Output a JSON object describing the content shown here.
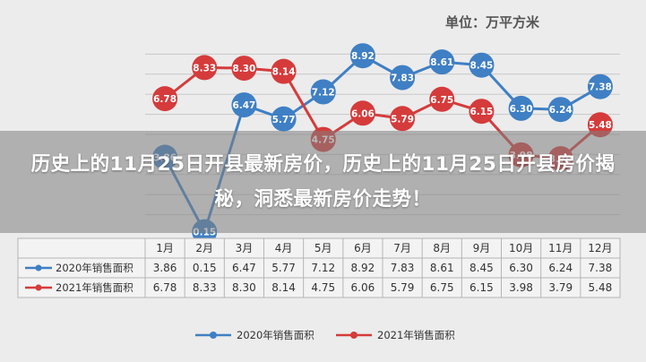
{
  "header": {
    "unit": "单位：万平方米"
  },
  "banner": {
    "title": "历史上的11月25日开县最新房价，历史上的11月25日开县房价揭秘，洞悉最新房价走势！"
  },
  "colors": {
    "series_2020": "#3f7fc4",
    "series_2021": "#d53b3b",
    "grid": "#c8c8c8",
    "bg": "#ececec"
  },
  "chart_data": {
    "type": "line",
    "categories": [
      "1月",
      "2月",
      "3月",
      "4月",
      "5月",
      "6月",
      "7月",
      "8月",
      "9月",
      "10月",
      "11月",
      "12月"
    ],
    "series": [
      {
        "name": "2020年销售面积",
        "values": [
          3.86,
          0.15,
          6.47,
          5.77,
          7.12,
          8.92,
          7.83,
          8.61,
          8.45,
          6.3,
          6.24,
          7.38
        ]
      },
      {
        "name": "2021年销售面积",
        "values": [
          6.78,
          8.33,
          8.3,
          8.14,
          4.75,
          6.06,
          5.79,
          6.75,
          6.15,
          3.98,
          3.79,
          5.48
        ]
      }
    ],
    "data_labels": [
      [
        "3.86",
        "0.15",
        "6.47",
        "5.77",
        "7.12",
        "8.92",
        "7.83",
        "8.61",
        "8.45",
        "6.30",
        "6.24",
        "7.38"
      ],
      [
        "6.78",
        "8.33",
        "8.30",
        "8.14",
        "4.75",
        "6.06",
        "5.79",
        "6.75",
        "6.15",
        "3.98",
        "3.79",
        "5.48"
      ]
    ],
    "ylim": [
      0,
      10
    ],
    "grid": true,
    "legend": "bottom",
    "table": true
  }
}
